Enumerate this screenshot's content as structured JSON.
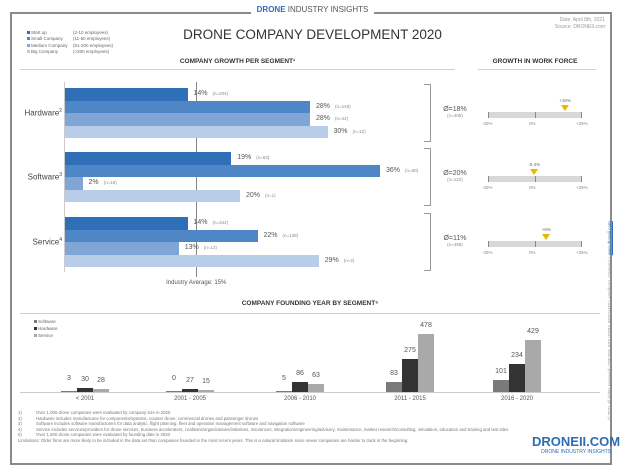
{
  "brand": {
    "bold": "DRONE",
    "rest": " INDUSTRY INSIGHTS"
  },
  "title": "DRONE COMPANY DEVELOPMENT 2020",
  "meta": {
    "date": "Date: April 8th, 2021",
    "source": "Source: DRONEII.com"
  },
  "legend": [
    {
      "label": "Start up",
      "size": "(2-10 employees)",
      "color": "#2f6fb7"
    },
    {
      "label": "Small Company",
      "size": "(11-50 employees)",
      "color": "#4f86c6"
    },
    {
      "label": "Medium Company",
      "size": "(51-200 employees)",
      "color": "#7fa6d6"
    },
    {
      "label": "Big Company",
      "size": "(>200 employees)",
      "color": "#b7cde8"
    }
  ],
  "chart_data": [
    {
      "type": "bar",
      "orientation": "horizontal",
      "title": "COMPANY GROWTH PER SEGMENT¹",
      "categories": [
        {
          "name": "Hardware",
          "sup": "2"
        },
        {
          "name": "Software",
          "sup": "3"
        },
        {
          "name": "Service",
          "sup": "4"
        }
      ],
      "series": [
        {
          "name": "Start up",
          "values": [
            14,
            19,
            14
          ],
          "n": [
            "(n=204)",
            "(n=53)",
            "(n=342)"
          ]
        },
        {
          "name": "Small Company",
          "values": [
            28,
            36,
            22
          ],
          "n": [
            "(n=148)",
            "(n=50)",
            "(n=139)"
          ]
        },
        {
          "name": "Medium Company",
          "values": [
            28,
            2,
            13
          ],
          "n": [
            "(n=42)",
            "(n=18)",
            "(n=13)"
          ]
        },
        {
          "name": "Big Company",
          "values": [
            30,
            20,
            29
          ],
          "n": [
            "(n=12)",
            "(n=1)",
            "(n=2)"
          ]
        }
      ],
      "segment_averages": [
        {
          "label": "Ø=18%",
          "n": "(n=406)"
        },
        {
          "label": "Ø=20%",
          "n": "(n=122)"
        },
        {
          "label": "Ø=11%",
          "n": "(n=496)"
        }
      ],
      "reference_line": {
        "value": 15,
        "label": "Industry Average: 15%"
      },
      "unit": "%"
    },
    {
      "type": "gauge",
      "title": "GROWTH IN WORK FORCE",
      "range": [
        -25,
        25
      ],
      "ticks": [
        "-25%",
        "0%",
        "+25%"
      ],
      "values": [
        16,
        -0.4,
        6
      ],
      "labels": [
        "+16%",
        "-0.4%",
        "+6%"
      ],
      "marker_color": "#e8b800"
    },
    {
      "type": "bar",
      "title": "COMPANY FOUNDING YEAR BY SEGMENT⁵",
      "categories": [
        "< 2001",
        "2001 - 2005",
        "2006 - 2010",
        "2011 - 2015",
        "2016 - 2020"
      ],
      "series": [
        {
          "name": "Software",
          "values": [
            3,
            0,
            5,
            83,
            101
          ],
          "color": "#7a7a7a"
        },
        {
          "name": "Hardware",
          "values": [
            30,
            27,
            86,
            275,
            234
          ],
          "color": "#333333"
        },
        {
          "name": "Service",
          "values": [
            28,
            15,
            63,
            478,
            429
          ],
          "color": "#a9a9a9"
        }
      ],
      "ylim": [
        0,
        500
      ]
    }
  ],
  "footnotes": [
    {
      "n": "1)",
      "t": "Over 1.000 drone companies were evaluated by company size in 2020"
    },
    {
      "n": "2)",
      "t": "Hardware includes manufactures for components/systems, counter drone, commercial drones and passenger drones"
    },
    {
      "n": "3)",
      "t": "Software includes software manufacturers for data analytic, flight planning, fleet and operation management software and navigation software"
    },
    {
      "n": "4)",
      "t": "Service includes services/providers for drone services, business accelerators, coalitions/organizations/initiatives, insurances, integration/engineering/advisory, maintenance, market research/consulting, simulation, education and training and test sites"
    },
    {
      "n": "5)",
      "t": "Over 1.600 drone companies were evaluated by founding date in 2020"
    },
    {
      "n": "",
      "t": "Limitations: Older firms are more likely to be included in the data set than companies founded in the most recent years. This is a natural limitation since newer companies are harder to track in the beginning."
    }
  ],
  "logo": {
    "big": "DRONEII.COM",
    "small": "DRONE INDUSTRY INSIGHTS"
  },
  "copyright": "© 2021 all rights reserved | DRONE INDUSTRY INSIGHTS | Hamburg, Germany | ",
  "website": "www.droneii.com"
}
